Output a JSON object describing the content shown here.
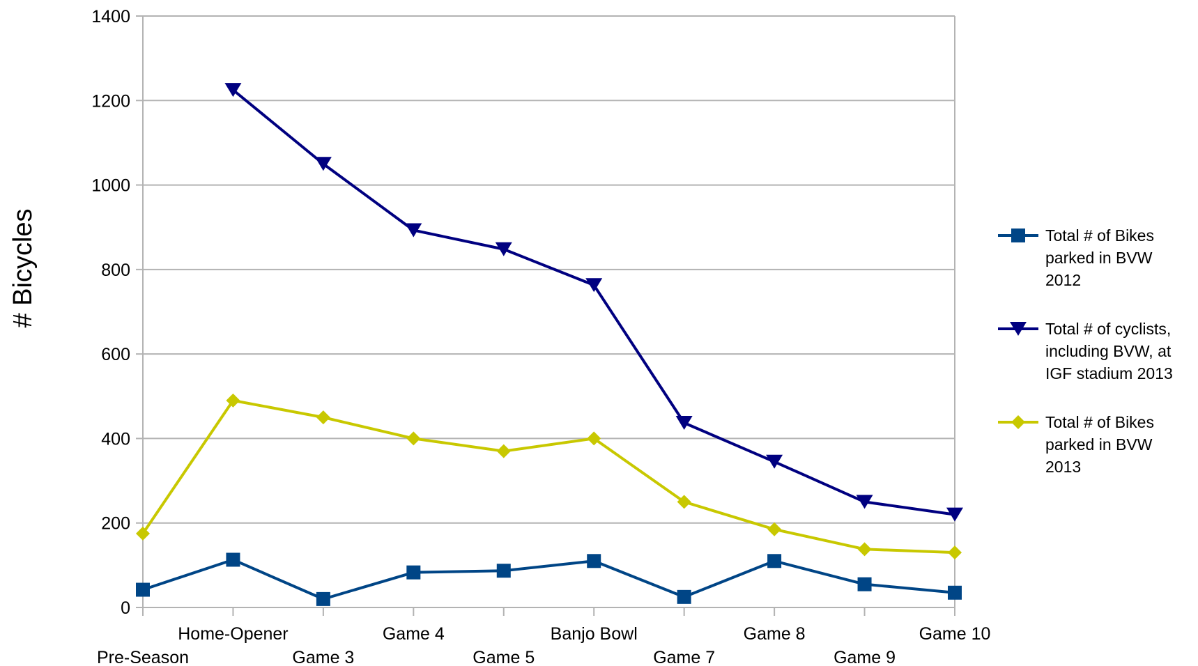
{
  "chart_data": {
    "type": "line",
    "title": "",
    "xlabel": "",
    "ylabel": "# Bicycles",
    "ylim": [
      0,
      1400
    ],
    "yticks": [
      0,
      200,
      400,
      600,
      800,
      1000,
      1200,
      1400
    ],
    "grid": "horizontal",
    "legend_position": "right",
    "categories": [
      "Pre-Season",
      "Home-Opener",
      "Game 3",
      "Game 4",
      "Game 5",
      "Banjo Bowl",
      "Game 7",
      "Game 8",
      "Game 9",
      "Game 10"
    ],
    "series": [
      {
        "name": "Total # of Bikes parked in BVW 2012",
        "legend_lines": [
          "Total # of Bikes",
          "parked in BVW",
          "2012"
        ],
        "color": "#004586",
        "marker": "square",
        "values": [
          42,
          113,
          20,
          83,
          87,
          110,
          25,
          110,
          55,
          35
        ]
      },
      {
        "name": "Total # of cyclists, including BVW, at IGF stadium 2013",
        "legend_lines": [
          "Total # of cyclists,",
          "including BVW, at",
          "IGF stadium 2013"
        ],
        "color": "#000080",
        "marker": "triangle-down",
        "values": [
          null,
          1225,
          1050,
          893,
          848,
          763,
          437,
          345,
          250,
          220
        ]
      },
      {
        "name": "Total # of Bikes parked in BVW 2013",
        "legend_lines": [
          "Total # of Bikes",
          "parked in BVW",
          "2013"
        ],
        "color": "#c8c800",
        "marker": "diamond",
        "values": [
          175,
          490,
          450,
          400,
          370,
          400,
          250,
          185,
          138,
          130
        ]
      }
    ]
  }
}
